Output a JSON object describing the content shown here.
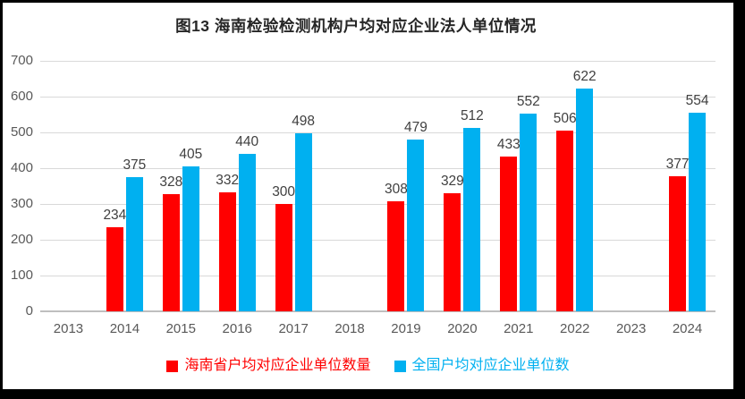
{
  "chart_data": {
    "type": "bar",
    "title": "图13 海南检验检测机构户均对应企业法人单位情况",
    "categories": [
      "2013",
      "2014",
      "2015",
      "2016",
      "2017",
      "2018",
      "2019",
      "2020",
      "2021",
      "2022",
      "2023",
      "2024"
    ],
    "series": [
      {
        "name": "海南省户均对应企业单位数量",
        "color": "#FF0000",
        "values": [
          null,
          234,
          328,
          332,
          300,
          null,
          308,
          329,
          433,
          506,
          null,
          377
        ]
      },
      {
        "name": "全国户均对应企业单位数",
        "color": "#00B0F0",
        "values": [
          null,
          375,
          405,
          440,
          498,
          null,
          479,
          512,
          552,
          622,
          null,
          554
        ]
      }
    ],
    "ylim": [
      0,
      700
    ],
    "yticks": [
      0,
      100,
      200,
      300,
      400,
      500,
      600,
      700
    ],
    "xlabel": "",
    "ylabel": "",
    "grid": true,
    "data_labels": true,
    "legend_position": "bottom"
  },
  "styles": {
    "gridline_color": "#d9d9d9",
    "axis_line_color": "#bfbfbf",
    "tick_label_color": "#595959",
    "data_label_color": "#404040",
    "title_color": "#262626",
    "frame_color": "#000000",
    "background": "#ffffff"
  }
}
